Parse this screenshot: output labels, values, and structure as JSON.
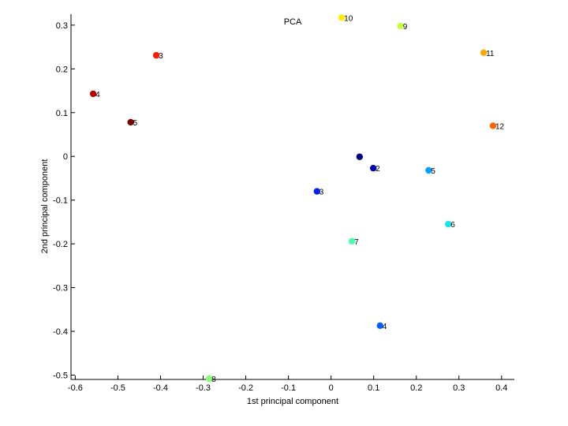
{
  "chart_data": {
    "type": "scatter",
    "title": "PCA",
    "xlabel": "1st principal component",
    "ylabel": "2nd principal component",
    "xlim": [
      -0.61,
      0.43
    ],
    "ylim": [
      -0.51,
      0.325
    ],
    "xticks": [
      -0.6,
      -0.5,
      -0.4,
      -0.3,
      -0.2,
      -0.1,
      0,
      0.1,
      0.2,
      0.3,
      0.4
    ],
    "xtick_labels": [
      "-0.6",
      "-0.5",
      "-0.4",
      "-0.3",
      "-0.2",
      "-0.1",
      "0",
      "0.1",
      "0.2",
      "0.3",
      "0.4"
    ],
    "yticks": [
      -0.5,
      -0.4,
      -0.3,
      -0.2,
      -0.1,
      0,
      0.1,
      0.2,
      0.3
    ],
    "ytick_labels": [
      "-0.5",
      "-0.4",
      "-0.3",
      "-0.2",
      "-0.1",
      "0",
      "0.1",
      "0.2",
      "0.3"
    ],
    "grid": false,
    "legend": "none",
    "points": [
      {
        "label": "",
        "x": 0.067,
        "y": -0.001,
        "color": "#00007f"
      },
      {
        "label": "2",
        "x": 0.099,
        "y": -0.027,
        "color": "#0000b8"
      },
      {
        "label": "3",
        "x": -0.033,
        "y": -0.08,
        "color": "#0022ee"
      },
      {
        "label": "4",
        "x": 0.115,
        "y": -0.387,
        "color": "#0060ff"
      },
      {
        "label": "5",
        "x": 0.229,
        "y": -0.032,
        "color": "#00a2ff"
      },
      {
        "label": "6",
        "x": 0.275,
        "y": -0.155,
        "color": "#12e4ee"
      },
      {
        "label": "7",
        "x": 0.049,
        "y": -0.194,
        "color": "#4cffb0"
      },
      {
        "label": "8",
        "x": -0.286,
        "y": -0.508,
        "color": "#88ff76"
      },
      {
        "label": "9",
        "x": 0.163,
        "y": 0.298,
        "color": "#c4ff38"
      },
      {
        "label": "10",
        "x": 0.025,
        "y": 0.317,
        "color": "#ffee00"
      },
      {
        "label": "11",
        "x": 0.358,
        "y": 0.237,
        "color": "#ffa800"
      },
      {
        "label": "12",
        "x": 0.38,
        "y": 0.07,
        "color": "#ff6400"
      },
      {
        "label": "3",
        "x": -0.41,
        "y": 0.231,
        "color": "#ff1c00"
      },
      {
        "label": "4",
        "x": -0.558,
        "y": 0.143,
        "color": "#b80000"
      },
      {
        "label": "5",
        "x": -0.47,
        "y": 0.078,
        "color": "#7f0000"
      }
    ]
  }
}
